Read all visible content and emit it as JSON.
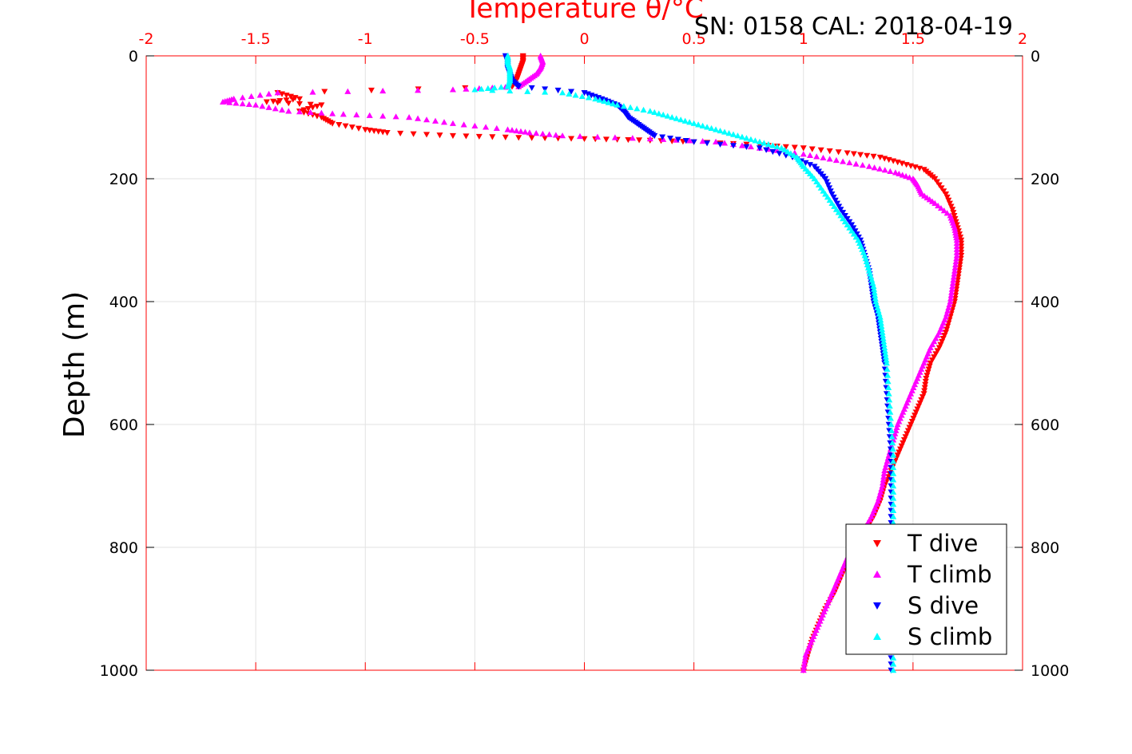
{
  "chart_data": {
    "type": "scatter",
    "title": "Temperature θ/°C",
    "subtitle": "SN: 0158  CAL: 2018-04-19",
    "xlabel": "Temperature θ/°C",
    "ylabel": "Depth (m)",
    "xlim": [
      -2,
      2
    ],
    "ylim": [
      0,
      1000
    ],
    "y_reversed": true,
    "x_ticks": [
      "-2",
      "-1.5",
      "-1",
      "-0.5",
      "0",
      "0.5",
      "1",
      "1.5",
      "2"
    ],
    "y_ticks": [
      "0",
      "200",
      "400",
      "600",
      "800",
      "1000"
    ],
    "grid": true,
    "legend_position": "bottom-right",
    "series": [
      {
        "name": "T dive",
        "color": "#ff0000",
        "marker": "triangle-down",
        "points": [
          [
            -0.28,
            0
          ],
          [
            -0.28,
            10
          ],
          [
            -0.29,
            20
          ],
          [
            -0.3,
            30
          ],
          [
            -0.31,
            40
          ],
          [
            -0.33,
            50
          ],
          [
            -1.4,
            60
          ],
          [
            -1.3,
            70
          ],
          [
            -1.45,
            75
          ],
          [
            -1.2,
            80
          ],
          [
            -1.3,
            90
          ],
          [
            -1.2,
            100
          ],
          [
            -1.15,
            110
          ],
          [
            -1.0,
            120
          ],
          [
            -0.9,
            125
          ],
          [
            -0.6,
            130
          ],
          [
            -0.3,
            133
          ],
          [
            0,
            135
          ],
          [
            0.25,
            137
          ],
          [
            0.5,
            140
          ],
          [
            0.8,
            145
          ],
          [
            1.0,
            150
          ],
          [
            1.2,
            158
          ],
          [
            1.35,
            165
          ],
          [
            1.45,
            175
          ],
          [
            1.55,
            185
          ],
          [
            1.6,
            200
          ],
          [
            1.65,
            225
          ],
          [
            1.68,
            250
          ],
          [
            1.7,
            275
          ],
          [
            1.72,
            300
          ],
          [
            1.72,
            325
          ],
          [
            1.71,
            350
          ],
          [
            1.7,
            375
          ],
          [
            1.69,
            400
          ],
          [
            1.67,
            425
          ],
          [
            1.65,
            450
          ],
          [
            1.62,
            475
          ],
          [
            1.58,
            500
          ],
          [
            1.56,
            525
          ],
          [
            1.55,
            550
          ],
          [
            1.52,
            575
          ],
          [
            1.49,
            600
          ],
          [
            1.46,
            625
          ],
          [
            1.43,
            650
          ],
          [
            1.4,
            675
          ],
          [
            1.37,
            700
          ],
          [
            1.35,
            725
          ],
          [
            1.32,
            750
          ],
          [
            1.28,
            775
          ],
          [
            1.24,
            800
          ],
          [
            1.2,
            825
          ],
          [
            1.17,
            850
          ],
          [
            1.14,
            875
          ],
          [
            1.1,
            900
          ],
          [
            1.07,
            925
          ],
          [
            1.04,
            950
          ],
          [
            1.02,
            975
          ],
          [
            1.0,
            1000
          ]
        ]
      },
      {
        "name": "T climb",
        "color": "#ff00ff",
        "marker": "triangle-up",
        "points": [
          [
            -0.2,
            0
          ],
          [
            -0.19,
            10
          ],
          [
            -0.2,
            20
          ],
          [
            -0.22,
            30
          ],
          [
            -0.26,
            40
          ],
          [
            -0.3,
            50
          ],
          [
            -0.6,
            55
          ],
          [
            -1.4,
            60
          ],
          [
            -1.6,
            70
          ],
          [
            -1.65,
            75
          ],
          [
            -1.5,
            80
          ],
          [
            -1.35,
            90
          ],
          [
            -1.1,
            95
          ],
          [
            -0.8,
            100
          ],
          [
            -0.6,
            110
          ],
          [
            -0.35,
            120
          ],
          [
            -0.25,
            125
          ],
          [
            -0.1,
            130
          ],
          [
            0.3,
            135
          ],
          [
            0.6,
            140
          ],
          [
            0.8,
            150
          ],
          [
            1.0,
            160
          ],
          [
            1.15,
            170
          ],
          [
            1.3,
            180
          ],
          [
            1.42,
            190
          ],
          [
            1.5,
            200
          ],
          [
            1.52,
            210
          ],
          [
            1.54,
            225
          ],
          [
            1.6,
            240
          ],
          [
            1.67,
            260
          ],
          [
            1.69,
            280
          ],
          [
            1.7,
            300
          ],
          [
            1.7,
            325
          ],
          [
            1.69,
            350
          ],
          [
            1.68,
            375
          ],
          [
            1.67,
            400
          ],
          [
            1.65,
            425
          ],
          [
            1.62,
            450
          ],
          [
            1.58,
            475
          ],
          [
            1.55,
            500
          ],
          [
            1.52,
            525
          ],
          [
            1.49,
            550
          ],
          [
            1.46,
            575
          ],
          [
            1.43,
            600
          ],
          [
            1.41,
            625
          ],
          [
            1.39,
            650
          ],
          [
            1.37,
            675
          ],
          [
            1.36,
            700
          ],
          [
            1.34,
            725
          ],
          [
            1.31,
            750
          ],
          [
            1.27,
            775
          ],
          [
            1.22,
            800
          ],
          [
            1.19,
            825
          ],
          [
            1.16,
            850
          ],
          [
            1.13,
            875
          ],
          [
            1.1,
            900
          ],
          [
            1.07,
            925
          ],
          [
            1.04,
            950
          ],
          [
            1.01,
            975
          ],
          [
            1.0,
            1000
          ]
        ]
      },
      {
        "name": "S dive",
        "color": "#0000ff",
        "marker": "triangle-down",
        "points": [
          [
            -0.36,
            0
          ],
          [
            -0.35,
            10
          ],
          [
            -0.35,
            20
          ],
          [
            -0.34,
            30
          ],
          [
            -0.33,
            40
          ],
          [
            -0.3,
            50
          ],
          [
            0.0,
            60
          ],
          [
            0.08,
            70
          ],
          [
            0.15,
            80
          ],
          [
            0.18,
            90
          ],
          [
            0.2,
            100
          ],
          [
            0.24,
            110
          ],
          [
            0.28,
            120
          ],
          [
            0.32,
            130
          ],
          [
            0.5,
            140
          ],
          [
            0.8,
            150
          ],
          [
            0.95,
            165
          ],
          [
            1.05,
            180
          ],
          [
            1.1,
            200
          ],
          [
            1.13,
            225
          ],
          [
            1.17,
            250
          ],
          [
            1.22,
            275
          ],
          [
            1.26,
            300
          ],
          [
            1.28,
            325
          ],
          [
            1.3,
            350
          ],
          [
            1.31,
            375
          ],
          [
            1.32,
            400
          ],
          [
            1.34,
            425
          ],
          [
            1.35,
            450
          ],
          [
            1.36,
            475
          ],
          [
            1.37,
            500
          ],
          [
            1.38,
            550
          ],
          [
            1.39,
            600
          ],
          [
            1.4,
            650
          ],
          [
            1.4,
            700
          ],
          [
            1.4,
            750
          ],
          [
            1.4,
            800
          ],
          [
            1.4,
            850
          ],
          [
            1.4,
            900
          ],
          [
            1.4,
            950
          ],
          [
            1.4,
            1000
          ]
        ]
      },
      {
        "name": "S climb",
        "color": "#00ffff",
        "marker": "triangle-up",
        "points": [
          [
            -0.35,
            0
          ],
          [
            -0.35,
            10
          ],
          [
            -0.34,
            20
          ],
          [
            -0.34,
            30
          ],
          [
            -0.34,
            40
          ],
          [
            -0.35,
            50
          ],
          [
            -0.5,
            55
          ],
          [
            -0.1,
            60
          ],
          [
            0.05,
            70
          ],
          [
            0.15,
            80
          ],
          [
            0.3,
            90
          ],
          [
            0.4,
            100
          ],
          [
            0.5,
            110
          ],
          [
            0.6,
            120
          ],
          [
            0.7,
            130
          ],
          [
            0.8,
            140
          ],
          [
            0.9,
            150
          ],
          [
            0.97,
            165
          ],
          [
            1.0,
            180
          ],
          [
            1.05,
            200
          ],
          [
            1.1,
            225
          ],
          [
            1.15,
            250
          ],
          [
            1.2,
            275
          ],
          [
            1.25,
            300
          ],
          [
            1.28,
            325
          ],
          [
            1.3,
            350
          ],
          [
            1.32,
            375
          ],
          [
            1.33,
            400
          ],
          [
            1.35,
            425
          ],
          [
            1.36,
            450
          ],
          [
            1.37,
            475
          ],
          [
            1.38,
            500
          ],
          [
            1.39,
            550
          ],
          [
            1.4,
            600
          ],
          [
            1.41,
            650
          ],
          [
            1.41,
            700
          ],
          [
            1.41,
            750
          ],
          [
            1.41,
            800
          ],
          [
            1.41,
            850
          ],
          [
            1.41,
            900
          ],
          [
            1.41,
            950
          ],
          [
            1.41,
            1000
          ]
        ]
      }
    ]
  }
}
